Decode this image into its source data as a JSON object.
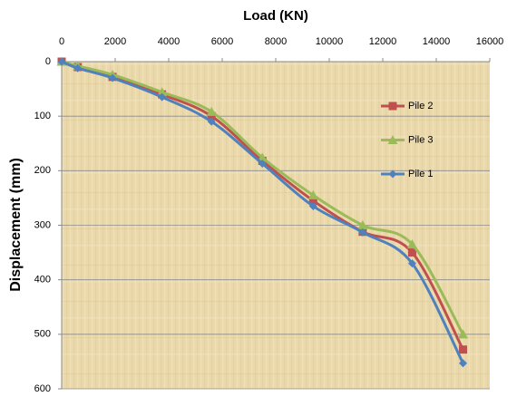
{
  "chart_data": {
    "type": "line",
    "title": "Load (KN)",
    "y_label": "Displacement (mm)",
    "x": [
      0,
      600,
      1900,
      3750,
      5600,
      7500,
      9400,
      11250,
      13100,
      15000
    ],
    "xlim": [
      0,
      16000
    ],
    "xticks": [
      0,
      2000,
      4000,
      6000,
      8000,
      10000,
      12000,
      14000,
      16000
    ],
    "ylim": [
      0,
      600
    ],
    "yticks": [
      0,
      100,
      200,
      300,
      400,
      500,
      600
    ],
    "y_inverted": true,
    "x_axis_position": "top",
    "grid": true,
    "legend_position": "right",
    "series": [
      {
        "name": "Pile 2",
        "color": "#c0504d",
        "marker": "square",
        "values": [
          0,
          10,
          28,
          60,
          100,
          182,
          255,
          312,
          350,
          528
        ]
      },
      {
        "name": "Pile 3",
        "color": "#9bbb59",
        "marker": "triangle",
        "values": [
          0,
          8,
          24,
          56,
          92,
          176,
          245,
          300,
          335,
          500
        ]
      },
      {
        "name": "Pile 1",
        "color": "#4f81bd",
        "marker": "diamond",
        "values": [
          0,
          12,
          30,
          65,
          110,
          187,
          265,
          313,
          370,
          553
        ]
      }
    ]
  }
}
